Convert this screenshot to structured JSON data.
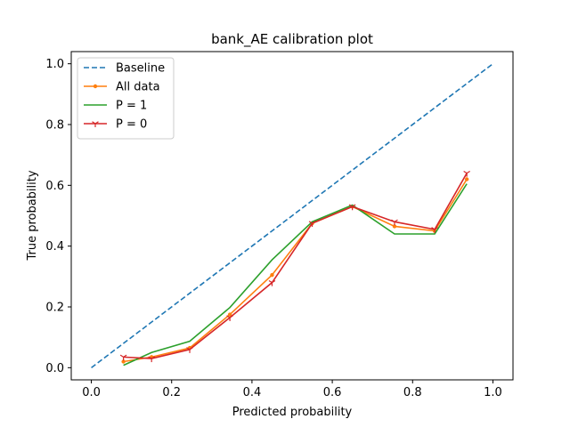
{
  "chart_data": {
    "type": "line",
    "title": "bank_AE calibration plot",
    "xlabel": "Predicted probability",
    "ylabel": "True probability",
    "xlim": [
      -0.05,
      1.05
    ],
    "ylim": [
      -0.04,
      1.04
    ],
    "xticks": [
      0.0,
      0.2,
      0.4,
      0.6,
      0.8,
      1.0
    ],
    "yticks": [
      0.0,
      0.2,
      0.4,
      0.6,
      0.8,
      1.0
    ],
    "xtick_labels": [
      "0.0",
      "0.2",
      "0.4",
      "0.6",
      "0.8",
      "1.0"
    ],
    "ytick_labels": [
      "0.0",
      "0.2",
      "0.4",
      "0.6",
      "0.8",
      "1.0"
    ],
    "grid": false,
    "legend": "top-left",
    "series": [
      {
        "name": "Baseline",
        "color": "#1f77b4",
        "style": "dashed",
        "marker": "none",
        "x": [
          0.0,
          1.0
        ],
        "y": [
          0.0,
          1.0
        ]
      },
      {
        "name": "All data",
        "color": "#ff7f0e",
        "style": "solid",
        "marker": "dot",
        "x": [
          0.08,
          0.15,
          0.245,
          0.345,
          0.45,
          0.55,
          0.65,
          0.755,
          0.855,
          0.935
        ],
        "y": [
          0.02,
          0.035,
          0.065,
          0.175,
          0.305,
          0.475,
          0.53,
          0.465,
          0.45,
          0.62
        ]
      },
      {
        "name": "P = 1",
        "color": "#2ca02c",
        "style": "solid",
        "marker": "none",
        "x": [
          0.08,
          0.15,
          0.245,
          0.345,
          0.45,
          0.55,
          0.65,
          0.755,
          0.855,
          0.935
        ],
        "y": [
          0.008,
          0.05,
          0.087,
          0.198,
          0.355,
          0.48,
          0.535,
          0.44,
          0.44,
          0.605
        ]
      },
      {
        "name": "P = 0",
        "color": "#d62728",
        "style": "solid",
        "marker": "tri",
        "x": [
          0.08,
          0.15,
          0.245,
          0.345,
          0.45,
          0.55,
          0.65,
          0.755,
          0.855,
          0.935
        ],
        "y": [
          0.035,
          0.03,
          0.06,
          0.165,
          0.28,
          0.475,
          0.53,
          0.48,
          0.455,
          0.64
        ]
      }
    ]
  }
}
